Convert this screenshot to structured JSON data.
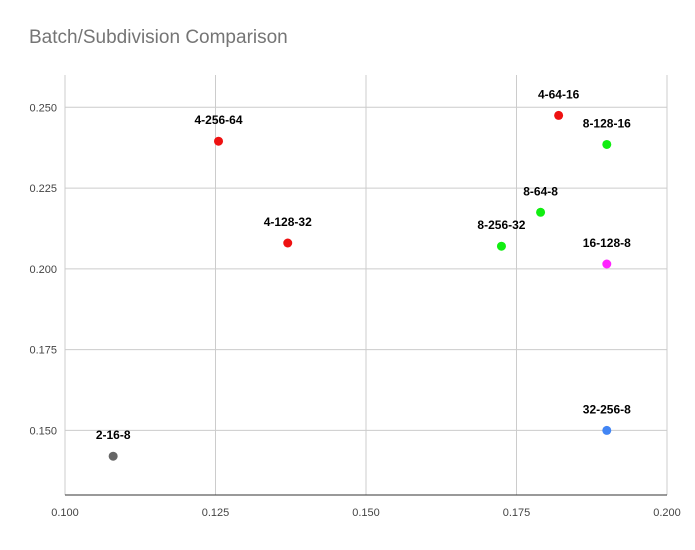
{
  "chart_data": {
    "type": "scatter",
    "title": "Batch/Subdivision Comparison",
    "xlabel": "",
    "ylabel": "",
    "xlim": [
      0.1,
      0.2
    ],
    "ylim": [
      0.13,
      0.26
    ],
    "x_ticks": [
      "0.100",
      "0.125",
      "0.150",
      "0.175",
      "0.200"
    ],
    "y_ticks": [
      "0.150",
      "0.175",
      "0.200",
      "0.225",
      "0.250"
    ],
    "grid": true,
    "legend": "none",
    "points": [
      {
        "label": "2-16-8",
        "x": 0.108,
        "y": 0.142,
        "color": "#666666"
      },
      {
        "label": "4-256-64",
        "x": 0.1255,
        "y": 0.2395,
        "color": "#ee1111"
      },
      {
        "label": "4-128-32",
        "x": 0.137,
        "y": 0.208,
        "color": "#ee1111"
      },
      {
        "label": "4-64-16",
        "x": 0.182,
        "y": 0.2475,
        "color": "#ee1111"
      },
      {
        "label": "8-128-16",
        "x": 0.19,
        "y": 0.2385,
        "color": "#11ee11"
      },
      {
        "label": "8-64-8",
        "x": 0.179,
        "y": 0.2175,
        "color": "#11ee11"
      },
      {
        "label": "8-256-32",
        "x": 0.1725,
        "y": 0.207,
        "color": "#11ee11"
      },
      {
        "label": "16-128-8",
        "x": 0.19,
        "y": 0.2015,
        "color": "#ff22ff"
      },
      {
        "label": "32-256-8",
        "x": 0.19,
        "y": 0.15,
        "color": "#4285f4"
      }
    ]
  }
}
